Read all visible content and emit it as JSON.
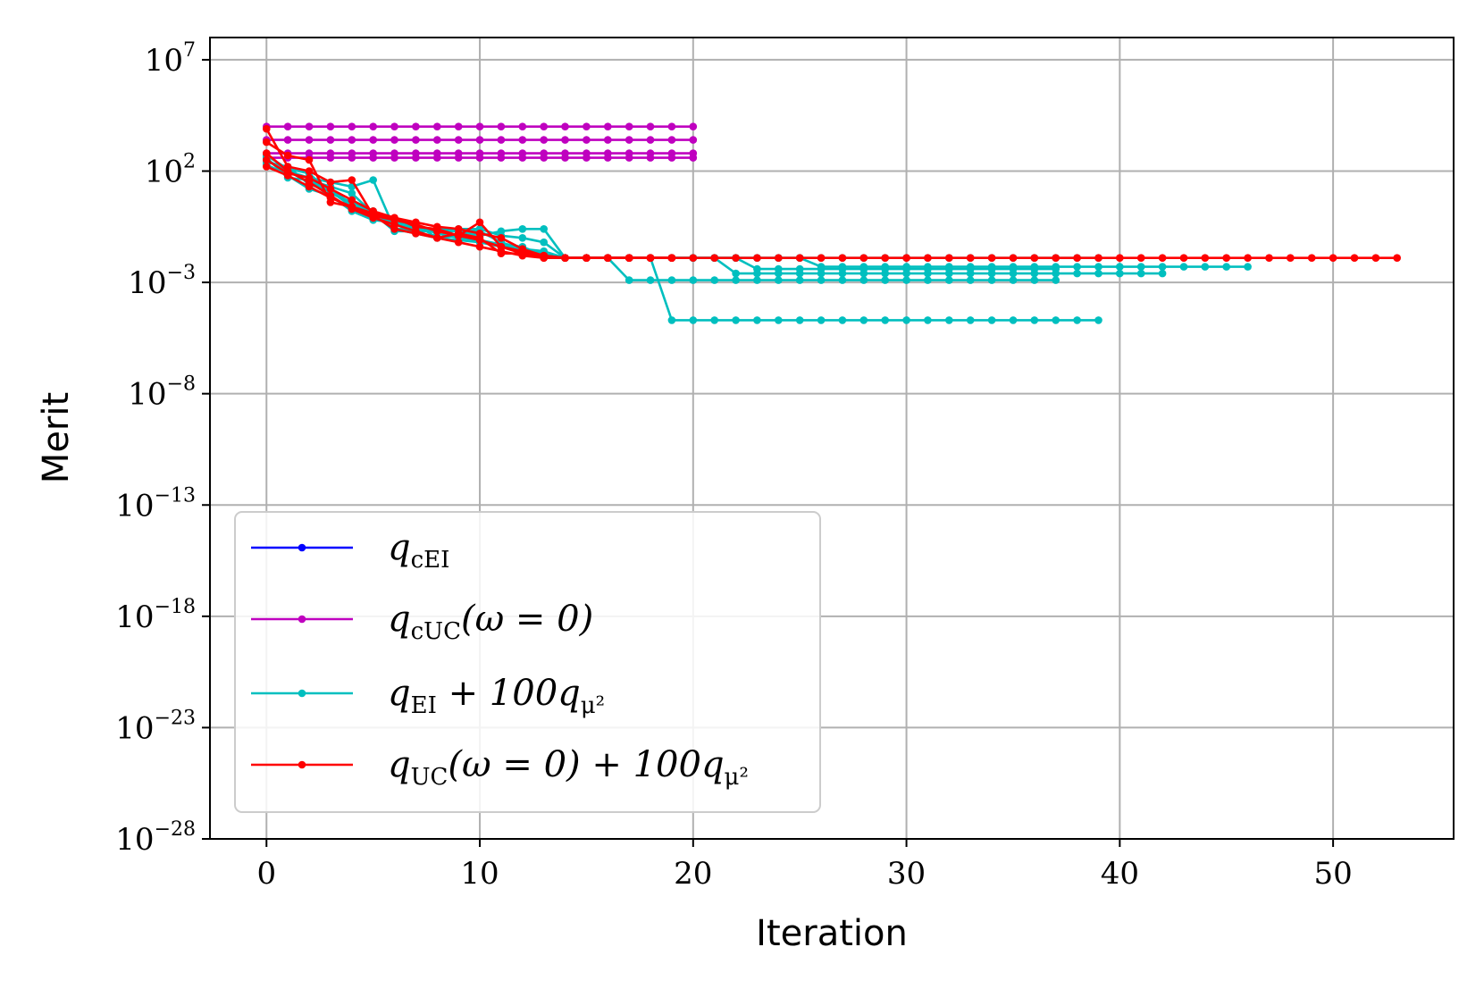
{
  "chart_data": {
    "type": "line",
    "xlabel": "Iteration",
    "ylabel": "Merit",
    "yscale": "log",
    "xlim": [
      -2.65,
      55.65
    ],
    "ylim_exponent": [
      -28,
      8
    ],
    "xticks": [
      0,
      10,
      20,
      30,
      40,
      50
    ],
    "xtick_labels": [
      "0",
      "10",
      "20",
      "30",
      "40",
      "50"
    ],
    "yticks_exponent": [
      -28,
      -23,
      -18,
      -13,
      -8,
      -3,
      2,
      7
    ],
    "ytick_labels": [
      "10",
      "10",
      "10",
      "10",
      "10",
      "10",
      "10",
      "10"
    ],
    "ytick_exponent_labels": [
      "−28",
      "−23",
      "−18",
      "−13",
      "−8",
      "−3",
      "2",
      "7"
    ],
    "grid": true,
    "legend_position": "lower-left",
    "colors": {
      "q_cEI": "#0000ff",
      "q_cUC": "#bf00bf",
      "q_EI_mu": "#00bfbf",
      "q_UC_mu": "#ff0000"
    },
    "legend": [
      {
        "key": "q_cEI",
        "color": "#0000ff",
        "base": "q",
        "sub": "cEI",
        "rest": ""
      },
      {
        "key": "q_cUC",
        "color": "#bf00bf",
        "base": "q",
        "sub": "cUC",
        "rest": "(ω = 0)"
      },
      {
        "key": "q_EI_mu",
        "color": "#00bfbf",
        "base": "q",
        "sub": "EI",
        "rest": " + 100q",
        "sub2": "μ²"
      },
      {
        "key": "q_UC_mu",
        "color": "#ff0000",
        "base": "q",
        "sub": "UC",
        "rest": "(ω = 0) + 100q",
        "sub2": "μ²"
      }
    ],
    "series": [
      {
        "group": "q_cUC",
        "x_start": 0,
        "x_end": 20,
        "log10_values": [
          4.0
        ]
      },
      {
        "group": "q_cUC",
        "x_start": 0,
        "x_end": 20,
        "log10_values": [
          3.4
        ]
      },
      {
        "group": "q_cUC",
        "x_start": 0,
        "x_end": 20,
        "log10_values": [
          2.8
        ]
      },
      {
        "group": "q_cUC",
        "x_start": 0,
        "x_end": 20,
        "log10_values": [
          2.6
        ]
      },
      {
        "group": "q_EI_mu",
        "x_start": 0,
        "log10_values": [
          2.6,
          1.7,
          1.6,
          1.3,
          1.0,
          0.1,
          -0.7,
          -0.7,
          -0.7,
          -0.7,
          -0.7,
          -1.2,
          -1.5,
          -1.6,
          -1.9,
          -1.9,
          -1.9,
          -2.9,
          -2.9,
          -2.9,
          -2.9,
          -2.9,
          -2.9,
          -2.9,
          -2.9,
          -2.9,
          -2.9,
          -2.9,
          -2.9,
          -2.9,
          -2.9,
          -2.9,
          -2.9,
          -2.9,
          -2.9,
          -2.9,
          -2.9,
          -2.9
        ]
      },
      {
        "group": "q_EI_mu",
        "x_start": 0,
        "log10_values": [
          2.4,
          2.2,
          1.4,
          1.1,
          0.4,
          0.2,
          -0.6,
          -0.8,
          -1.0,
          -1.1,
          -1.2,
          -1.3,
          -1.4,
          -1.8,
          -1.9,
          -1.9,
          -1.9,
          -1.9,
          -1.9,
          -4.7,
          -4.7,
          -4.7,
          -4.7,
          -4.7,
          -4.7,
          -4.7,
          -4.7,
          -4.7,
          -4.7,
          -4.7,
          -4.7,
          -4.7,
          -4.7,
          -4.7,
          -4.7,
          -4.7,
          -4.7,
          -4.7,
          -4.7,
          -4.7
        ]
      },
      {
        "group": "q_EI_mu",
        "x_start": 0,
        "log10_values": [
          2.5,
          2.0,
          1.7,
          1.5,
          1.3,
          1.6,
          -0.6,
          -0.6,
          -0.6,
          -0.6,
          -0.6,
          -0.9,
          -1.0,
          -1.2,
          -1.9,
          -1.9,
          -1.9,
          -1.9,
          -1.9,
          -1.9,
          -1.9,
          -1.9,
          -2.6,
          -2.6,
          -2.6,
          -2.6,
          -2.6,
          -2.6,
          -2.6,
          -2.6,
          -2.6,
          -2.6,
          -2.6,
          -2.6,
          -2.6,
          -2.6,
          -2.6,
          -2.6,
          -2.6,
          -2.6,
          -2.6,
          -2.6,
          -2.6
        ]
      },
      {
        "group": "q_EI_mu",
        "x_start": 0,
        "log10_values": [
          2.3,
          1.8,
          1.2,
          0.9,
          0.2,
          -0.2,
          -0.3,
          -0.6,
          -0.6,
          -0.7,
          -0.9,
          -0.7,
          -0.6,
          -0.6,
          -1.9,
          -1.9,
          -1.9,
          -1.9,
          -1.9,
          -1.9,
          -1.9,
          -1.9,
          -1.9,
          -1.9,
          -1.9,
          -1.9,
          -2.3,
          -2.3,
          -2.3,
          -2.3,
          -2.3,
          -2.3,
          -2.3,
          -2.3,
          -2.3,
          -2.3,
          -2.3,
          -2.3,
          -2.3,
          -2.3,
          -2.3,
          -2.3,
          -2.3,
          -2.3,
          -2.3,
          -2.3,
          -2.3
        ]
      },
      {
        "group": "q_EI_mu",
        "x_start": 0,
        "log10_values": [
          2.7,
          2.1,
          1.9,
          1.0,
          0.6,
          0.1,
          -0.2,
          -0.4,
          -1.0,
          -0.9,
          -1.2,
          -1.4,
          -1.6,
          -1.8,
          -1.9,
          -1.9,
          -1.9,
          -1.9,
          -1.9,
          -1.9,
          -1.9,
          -1.9,
          -1.9,
          -1.9,
          -1.9,
          -1.9,
          -1.9,
          -1.9,
          -1.9,
          -1.9,
          -1.9,
          -1.9,
          -1.9,
          -1.9,
          -1.9,
          -1.9,
          -1.9,
          -1.9,
          -1.9,
          -1.9
        ]
      },
      {
        "group": "q_EI_mu",
        "x_start": 0,
        "log10_values": [
          2.5,
          2.0,
          1.5,
          1.2,
          0.5,
          0.0,
          -0.3,
          -0.5,
          -0.8,
          -1.0,
          -1.1,
          -1.3,
          -1.5,
          -1.7,
          -1.9,
          -1.9,
          -1.9,
          -1.9,
          -1.9,
          -1.9,
          -1.9,
          -1.9,
          -1.9,
          -2.4,
          -2.4,
          -2.4,
          -2.4,
          -2.4,
          -2.4,
          -2.4,
          -2.4,
          -2.4,
          -2.4,
          -2.4,
          -2.4,
          -2.4,
          -2.4,
          -2.4
        ]
      },
      {
        "group": "q_UC_mu",
        "x_start": 0,
        "log10_values": [
          3.9,
          2.2,
          2.0,
          1.5,
          1.6,
          0.0,
          -0.6,
          -0.8,
          -1.0,
          -0.8,
          -1.0,
          -1.7,
          -1.7,
          -1.8,
          -1.9,
          -1.9,
          -1.9,
          -1.9,
          -1.9,
          -1.9,
          -1.9,
          -1.9,
          -1.9,
          -1.9,
          -1.9,
          -1.9,
          -1.9,
          -1.9,
          -1.9,
          -1.9,
          -1.9,
          -1.9,
          -1.9,
          -1.9,
          -1.9,
          -1.9,
          -1.9,
          -1.9,
          -1.9,
          -1.9,
          -1.9,
          -1.9,
          -1.9,
          -1.9,
          -1.9,
          -1.9,
          -1.9,
          -1.9,
          -1.9,
          -1.9,
          -1.9,
          -1.9,
          -1.9,
          -1.9
        ]
      },
      {
        "group": "q_UC_mu",
        "x_start": 0,
        "log10_values": [
          3.3,
          2.7,
          2.5,
          0.6,
          0.4,
          0.1,
          -0.1,
          -0.5,
          -0.6,
          -0.9,
          -0.3,
          -1.4,
          -1.6,
          -1.8,
          -1.9,
          -1.9,
          -1.9,
          -1.9,
          -1.9,
          -1.9
        ]
      },
      {
        "group": "q_UC_mu",
        "x_start": 0,
        "log10_values": [
          2.8,
          2.0,
          1.5,
          0.9,
          0.3,
          -0.1,
          -0.4,
          -0.7,
          -1.0,
          -1.2,
          -1.4,
          -1.6,
          -1.8,
          -1.9,
          -1.9,
          -1.9,
          -1.9,
          -1.9,
          -1.9,
          -1.9
        ]
      },
      {
        "group": "q_UC_mu",
        "x_start": 0,
        "log10_values": [
          2.5,
          1.9,
          1.7,
          1.2,
          0.7,
          0.2,
          -0.1,
          -0.3,
          -0.5,
          -0.6,
          -0.8,
          -1.0,
          -1.5,
          -1.8,
          -1.9,
          -1.9,
          -1.9,
          -1.9,
          -1.9,
          -1.9
        ]
      },
      {
        "group": "q_UC_mu",
        "x_start": 0,
        "log10_values": [
          2.2,
          1.8,
          1.3,
          0.8,
          0.4,
          0.0,
          -0.2,
          -0.4,
          -0.7,
          -0.9,
          -1.1,
          -1.4,
          -1.7,
          -1.9,
          -1.9,
          -1.9,
          -1.9,
          -1.9,
          -1.9,
          -1.9
        ]
      }
    ]
  }
}
